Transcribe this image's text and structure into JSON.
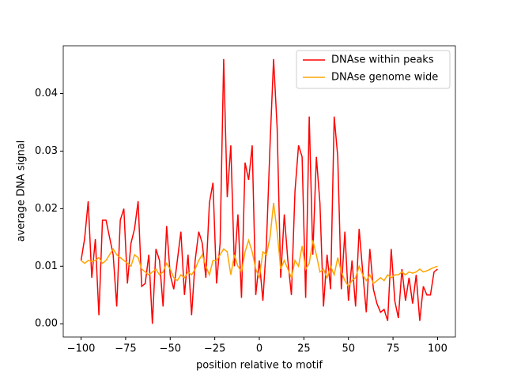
{
  "chart_data": {
    "type": "line",
    "xlabel": "position relative to motif",
    "ylabel": "average DNA signal",
    "x": [
      -100,
      -98,
      -96,
      -94,
      -92,
      -90,
      -88,
      -86,
      -84,
      -82,
      -80,
      -78,
      -76,
      -74,
      -72,
      -70,
      -68,
      -66,
      -64,
      -62,
      -60,
      -58,
      -56,
      -54,
      -52,
      -50,
      -48,
      -46,
      -44,
      -42,
      -40,
      -38,
      -36,
      -34,
      -32,
      -30,
      -28,
      -26,
      -24,
      -22,
      -20,
      -18,
      -16,
      -14,
      -12,
      -10,
      -8,
      -6,
      -4,
      -2,
      0,
      2,
      4,
      6,
      8,
      10,
      12,
      14,
      16,
      18,
      20,
      22,
      24,
      26,
      28,
      30,
      32,
      34,
      36,
      38,
      40,
      42,
      44,
      46,
      48,
      50,
      52,
      54,
      56,
      58,
      60,
      62,
      64,
      66,
      68,
      70,
      72,
      74,
      76,
      78,
      80,
      82,
      84,
      86,
      88,
      90,
      92,
      94,
      96,
      98,
      100
    ],
    "series": [
      {
        "name": "DNAse within peaks",
        "color": "#ff0000",
        "values": [
          0.011,
          0.0148,
          0.0213,
          0.008,
          0.0147,
          0.0015,
          0.018,
          0.018,
          0.015,
          0.012,
          0.003,
          0.018,
          0.02,
          0.007,
          0.014,
          0.0165,
          0.0213,
          0.0065,
          0.007,
          0.012,
          0,
          0.013,
          0.011,
          0.003,
          0.017,
          0.0085,
          0.006,
          0.011,
          0.016,
          0.005,
          0.012,
          0.0015,
          0.011,
          0.016,
          0.014,
          0.008,
          0.021,
          0.0245,
          0.007,
          0.014,
          0.046,
          0.022,
          0.031,
          0.01,
          0.019,
          0.0045,
          0.028,
          0.025,
          0.031,
          0.005,
          0.011,
          0.004,
          0.014,
          0.031,
          0.046,
          0.034,
          0.008,
          0.019,
          0.011,
          0.005,
          0.023,
          0.031,
          0.029,
          0.0045,
          0.036,
          0.012,
          0.029,
          0.021,
          0.003,
          0.012,
          0.006,
          0.036,
          0.029,
          0.006,
          0.016,
          0.004,
          0.011,
          0.003,
          0.0165,
          0.009,
          0.002,
          0.013,
          0.006,
          0.0035,
          0.002,
          0.0025,
          0.0005,
          0.013,
          0.004,
          0.001,
          0.0095,
          0.004,
          0.008,
          0.0035,
          0.0085,
          0.0005,
          0.0065,
          0.005,
          0.005,
          0.009,
          0.0095
        ]
      },
      {
        "name": "DNAse genome wide",
        "color": "#ffa500",
        "values": [
          0.011,
          0.0105,
          0.011,
          0.0108,
          0.011,
          0.0115,
          0.0105,
          0.011,
          0.012,
          0.013,
          0.012,
          0.0115,
          0.011,
          0.0105,
          0.01,
          0.012,
          0.0115,
          0.0095,
          0.009,
          0.0085,
          0.009,
          0.0095,
          0.0085,
          0.009,
          0.0105,
          0.0095,
          0.008,
          0.0075,
          0.0085,
          0.008,
          0.009,
          0.0085,
          0.0095,
          0.011,
          0.012,
          0.01,
          0.0085,
          0.011,
          0.011,
          0.012,
          0.013,
          0.0125,
          0.0085,
          0.012,
          0.01,
          0.009,
          0.0125,
          0.0145,
          0.0125,
          0.0095,
          0.008,
          0.0125,
          0.012,
          0.015,
          0.021,
          0.016,
          0.0095,
          0.011,
          0.0095,
          0.008,
          0.011,
          0.01,
          0.0135,
          0.0095,
          0.0105,
          0.0145,
          0.012,
          0.009,
          0.0095,
          0.008,
          0.01,
          0.0085,
          0.0115,
          0.009,
          0.0075,
          0.0065,
          0.0075,
          0.008,
          0.01,
          0.0085,
          0.0075,
          0.0085,
          0.007,
          0.0075,
          0.008,
          0.0075,
          0.0085,
          0.008,
          0.0085,
          0.0085,
          0.009,
          0.0085,
          0.009,
          0.0088,
          0.009,
          0.0095,
          0.009,
          0.0092,
          0.0095,
          0.0098,
          0.01
        ]
      }
    ],
    "xlim": [
      -110,
      110
    ],
    "ylim": [
      -0.0023,
      0.0483
    ],
    "xticks": [
      {
        "value": -100,
        "label": "−100"
      },
      {
        "value": -75,
        "label": "−75"
      },
      {
        "value": -50,
        "label": "−50"
      },
      {
        "value": -25,
        "label": "−25"
      },
      0,
      25,
      50,
      75,
      100
    ],
    "yticks": [
      {
        "value": 0,
        "label": "0.00"
      },
      0.01,
      0.02,
      0.03,
      0.04
    ],
    "legend": "upper right"
  }
}
